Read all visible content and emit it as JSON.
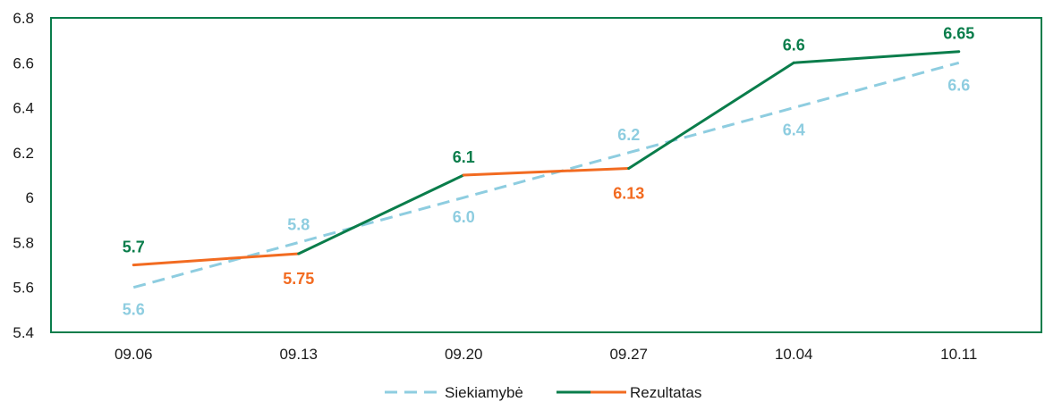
{
  "chart_data": {
    "type": "line",
    "categories": [
      "09.06",
      "09.13",
      "09.20",
      "09.27",
      "10.04",
      "10.11"
    ],
    "ylim": [
      5.4,
      6.8
    ],
    "yticks": [
      "5.4",
      "5.6",
      "5.8",
      "6",
      "6.2",
      "6.4",
      "6.6",
      "6.8"
    ],
    "grid": false,
    "legend_position": "bottom",
    "series": [
      {
        "name": "Siekiamybė",
        "values": [
          5.6,
          5.8,
          6.0,
          6.2,
          6.4,
          6.6
        ],
        "labels": [
          "5.6",
          "5.8",
          "6.0",
          "6.2",
          "6.4",
          "6.6"
        ],
        "color": "#8ecde0",
        "style": "dashed"
      },
      {
        "name": "Rezultatas",
        "values": [
          5.7,
          5.75,
          6.1,
          6.13,
          6.6,
          6.65
        ],
        "labels": [
          "5.7",
          "5.75",
          "6.1",
          "6.13",
          "6.6",
          "6.65"
        ],
        "color_above_target": "#0a7d4b",
        "color_below_target": "#f26b21",
        "segment_colors": [
          "#f26b21",
          "#0a7d4b",
          "#f26b21",
          "#0a7d4b",
          "#0a7d4b"
        ],
        "label_colors": [
          "#0a7d4b",
          "#f26b21",
          "#0a7d4b",
          "#f26b21",
          "#0a7d4b",
          "#0a7d4b"
        ]
      }
    ]
  }
}
